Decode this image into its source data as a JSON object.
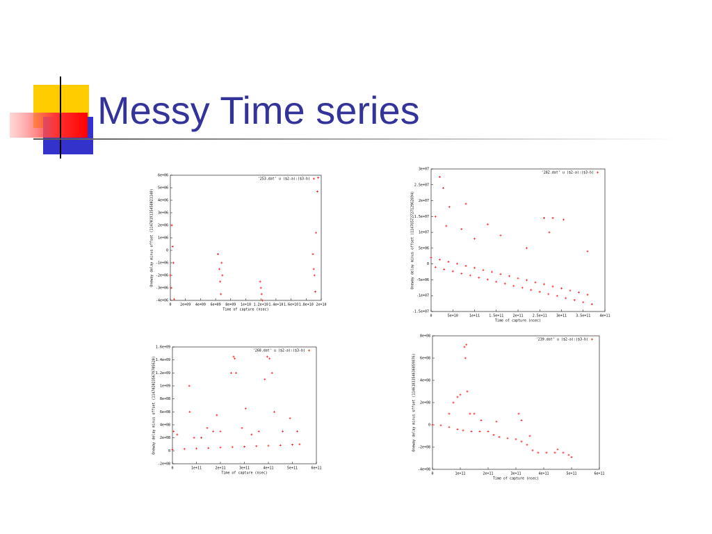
{
  "title": "Messy Time series",
  "chart_data": [
    {
      "type": "scatter",
      "x_label": "Time of capture (nsec)",
      "y_label": "Oneway delay minus offset (1147019135458021140)",
      "xlim": [
        0,
        20000000000
      ],
      "ylim": [
        -4000000,
        6000000
      ],
      "xticks": [
        0,
        {
          "value": 2000000000,
          "label": "2e+09"
        },
        {
          "value": 4000000000,
          "label": "4e+09"
        },
        {
          "value": 6000000000,
          "label": "6e+09"
        },
        {
          "value": 8000000000,
          "label": "8e+09"
        },
        {
          "value": 10000000000,
          "label": "1e+10"
        },
        {
          "value": 12000000000,
          "label": "1.2e+10"
        },
        {
          "value": 14000000000,
          "label": "1.4e+10"
        },
        {
          "value": 16000000000,
          "label": "1.6e+10"
        },
        {
          "value": 18000000000,
          "label": "1.8e+10"
        },
        {
          "value": 20000000000,
          "label": "2e+10"
        }
      ],
      "yticks": [
        {
          "value": -4000000,
          "label": "-4e+06"
        },
        {
          "value": -3000000,
          "label": "-3e+06"
        },
        {
          "value": -2000000,
          "label": "-2e+06"
        },
        {
          "value": -1000000,
          "label": "-1e+06"
        },
        0,
        {
          "value": 1000000,
          "label": "1e+06"
        },
        {
          "value": 2000000,
          "label": "2e+06"
        },
        {
          "value": 3000000,
          "label": "3e+06"
        },
        {
          "value": 4000000,
          "label": "4e+06"
        },
        {
          "value": 5000000,
          "label": "5e+06"
        },
        {
          "value": 6000000,
          "label": "6e+06"
        }
      ],
      "series": [
        {
          "name": "'253.dat' u ($2-a):($3-b)",
          "color": "#ff0000",
          "x": [
            0,
            100000000,
            200000000,
            300000000,
            400000000,
            500000000,
            6300000000,
            6500000000,
            6600000000,
            6700000000,
            6800000000,
            6900000000,
            11900000000,
            12000000000,
            12100000000,
            12200000000,
            18900000000,
            19000000000,
            19100000000,
            19200000000,
            19300000000,
            19500000000,
            19600000000
          ],
          "values": [
            -2000000,
            -3000000,
            2000000,
            300000,
            -1000000,
            -3900000,
            -300000,
            -1500000,
            -2500000,
            -3500000,
            -1000000,
            -2000000,
            -2500000,
            -3000000,
            -3500000,
            -4000000,
            -300000,
            -1500000,
            -2000000,
            -3300000,
            1400000,
            4700000,
            5800000
          ]
        }
      ]
    },
    {
      "type": "scatter",
      "x_label": "Time of capture (nsec)",
      "y_label": "Oneway delay minus offset (1147657272712962694)",
      "xlim": [
        0,
        400000000000
      ],
      "ylim": [
        -15000000,
        30000000
      ],
      "xticks": [
        0,
        {
          "value": 50000000000,
          "label": "5e+10"
        },
        {
          "value": 100000000000,
          "label": "1e+11"
        },
        {
          "value": 150000000000,
          "label": "1.5e+11"
        },
        {
          "value": 200000000000,
          "label": "2e+11"
        },
        {
          "value": 250000000000,
          "label": "2.5e+11"
        },
        {
          "value": 300000000000,
          "label": "3e+11"
        },
        {
          "value": 350000000000,
          "label": "3.5e+11"
        },
        {
          "value": 400000000000,
          "label": "4e+11"
        }
      ],
      "yticks": [
        {
          "value": -15000000,
          "label": "-1.5e+07"
        },
        {
          "value": -10000000,
          "label": "-1e+07"
        },
        {
          "value": -5000000,
          "label": "-5e+06"
        },
        0,
        {
          "value": 5000000,
          "label": "5e+06"
        },
        {
          "value": 10000000,
          "label": "1e+07"
        },
        {
          "value": 15000000,
          "label": "1.5e+07"
        },
        {
          "value": 20000000,
          "label": "2e+07"
        },
        {
          "value": 25000000,
          "label": "2.5e+07"
        },
        {
          "value": 30000000,
          "label": "3e+07"
        }
      ],
      "series": [
        {
          "name": "'282.dat' u ($2-a):($3-b)",
          "color": "#ff0000",
          "x": [
            0,
            20000000000,
            40000000000,
            60000000000,
            80000000000,
            100000000000,
            120000000000,
            140000000000,
            160000000000,
            180000000000,
            200000000000,
            220000000000,
            240000000000,
            260000000000,
            280000000000,
            300000000000,
            320000000000,
            340000000000,
            360000000000,
            10000000000,
            30000000000,
            50000000000,
            70000000000,
            90000000000,
            110000000000,
            130000000000,
            150000000000,
            170000000000,
            190000000000,
            210000000000,
            230000000000,
            250000000000,
            270000000000,
            290000000000,
            310000000000,
            330000000000,
            350000000000,
            370000000000,
            10000000000,
            20000000000,
            28000000000,
            42000000000,
            35000000000,
            70000000000,
            80000000000,
            130000000000,
            160000000000,
            260000000000,
            280000000000,
            305000000000,
            272000000000,
            360000000000,
            220000000000,
            100000000000
          ],
          "values": [
            2000000,
            1400000,
            700000,
            100000,
            -600000,
            -1200000,
            -1900000,
            -2500000,
            -3200000,
            -3800000,
            -4500000,
            -5100000,
            -5800000,
            -6400000,
            -7100000,
            -7700000,
            -8400000,
            -9000000,
            -9700000,
            -1000000,
            -1700000,
            -2300000,
            -3000000,
            -3600000,
            -4300000,
            -4900000,
            -5600000,
            -6200000,
            -6900000,
            -7500000,
            -8200000,
            -8800000,
            -9500000,
            -10100000,
            -10800000,
            -11400000,
            -12100000,
            -12700000,
            15000000,
            27500000,
            24000000,
            18000000,
            12000000,
            11000000,
            19000000,
            12500000,
            9000000,
            14500000,
            14500000,
            14000000,
            10000000,
            4000000,
            5000000,
            8000000
          ]
        }
      ]
    },
    {
      "type": "scatter",
      "x_label": "Time of capture (nsec)",
      "y_label": "Oneway delay minus offset (1147020235679705620)",
      "xlim": [
        0,
        600000000000
      ],
      "ylim": [
        -200000000,
        1600000000
      ],
      "xticks": [
        0,
        {
          "value": 100000000000,
          "label": "1e+11"
        },
        {
          "value": 200000000000,
          "label": "2e+11"
        },
        {
          "value": 300000000000,
          "label": "3e+11"
        },
        {
          "value": 400000000000,
          "label": "4e+11"
        },
        {
          "value": 500000000000,
          "label": "5e+11"
        },
        {
          "value": 600000000000,
          "label": "6e+11"
        }
      ],
      "yticks": [
        {
          "value": -200000000,
          "label": "-2e+08"
        },
        0,
        {
          "value": 200000000,
          "label": "2e+08"
        },
        {
          "value": 400000000,
          "label": "4e+08"
        },
        {
          "value": 600000000,
          "label": "6e+08"
        },
        {
          "value": 800000000,
          "label": "8e+08"
        },
        {
          "value": 1000000000,
          "label": "1e+09"
        },
        {
          "value": 1200000000,
          "label": "1.2e+09"
        },
        {
          "value": 1400000000,
          "label": "1.4e+09"
        },
        {
          "value": 1600000000,
          "label": "1.6e+09"
        }
      ],
      "series": [
        {
          "name": "'268.dat' u ($2-a):($3-b)",
          "color": "#ff0000",
          "x": [
            0,
            50000000000,
            100000000000,
            150000000000,
            200000000000,
            250000000000,
            300000000000,
            350000000000,
            400000000000,
            450000000000,
            500000000000,
            530000000000,
            5000000000,
            20000000000,
            70000000000,
            72000000000,
            90000000000,
            120000000000,
            145000000000,
            170000000000,
            185000000000,
            200000000000,
            245000000000,
            255000000000,
            260000000000,
            265000000000,
            290000000000,
            305000000000,
            330000000000,
            360000000000,
            385000000000,
            395000000000,
            405000000000,
            415000000000,
            425000000000,
            460000000000,
            490000000000,
            520000000000
          ],
          "values": [
            20000000,
            28000000,
            35000000,
            42000000,
            50000000,
            57000000,
            64000000,
            71000000,
            78000000,
            85000000,
            93000000,
            100000000,
            300000000,
            250000000,
            1000000000,
            600000000,
            200000000,
            200000000,
            350000000,
            300000000,
            550000000,
            300000000,
            1200000000,
            1450000000,
            1420000000,
            1200000000,
            350000000,
            650000000,
            250000000,
            300000000,
            1100000000,
            1450000000,
            1420000000,
            1200000000,
            600000000,
            300000000,
            500000000,
            300000000
          ]
        }
      ]
    },
    {
      "type": "scatter",
      "x_label": "Time of capture (nsec)",
      "y_label": "Oneway delay minus offset (1146183354636859876)",
      "xlim": [
        0,
        600000000000
      ],
      "ylim": [
        -400000000,
        800000000
      ],
      "xticks": [
        0,
        {
          "value": 100000000000,
          "label": "1e+11"
        },
        {
          "value": 200000000000,
          "label": "2e+11"
        },
        {
          "value": 300000000000,
          "label": "3e+11"
        },
        {
          "value": 400000000000,
          "label": "4e+11"
        },
        {
          "value": 500000000000,
          "label": "5e+11"
        },
        {
          "value": 600000000000,
          "label": "6e+11"
        }
      ],
      "yticks": [
        {
          "value": -400000000,
          "label": "-4e+08"
        },
        {
          "value": -200000000,
          "label": "-2e+08"
        },
        0,
        {
          "value": 200000000,
          "label": "2e+08"
        },
        {
          "value": 400000000,
          "label": "4e+08"
        },
        {
          "value": 600000000,
          "label": "6e+08"
        },
        {
          "value": 800000000,
          "label": "8e+08"
        }
      ],
      "series": [
        {
          "name": "'239.dat' u ($2-a):($3-b)",
          "color": "#ff0000",
          "x": [
            0,
            30000000000,
            60000000000,
            90000000000,
            110000000000,
            140000000000,
            170000000000,
            200000000000,
            220000000000,
            240000000000,
            270000000000,
            300000000000,
            320000000000,
            340000000000,
            360000000000,
            380000000000,
            410000000000,
            440000000000,
            470000000000,
            490000000000,
            500000000000,
            60000000000,
            75000000000,
            90000000000,
            100000000000,
            115000000000,
            118000000000,
            122000000000,
            125000000000,
            135000000000,
            150000000000,
            175000000000,
            230000000000,
            310000000000,
            320000000000,
            350000000000,
            450000000000
          ],
          "values": [
            0,
            -5000000,
            -20000000,
            -40000000,
            -50000000,
            -60000000,
            -60000000,
            -60000000,
            -90000000,
            -110000000,
            -120000000,
            -130000000,
            -150000000,
            -180000000,
            -230000000,
            -250000000,
            -250000000,
            -250000000,
            -250000000,
            -270000000,
            -290000000,
            100000000,
            200000000,
            250000000,
            270000000,
            700000000,
            600000000,
            720000000,
            300000000,
            100000000,
            100000000,
            40000000,
            30000000,
            100000000,
            40000000,
            -100000000,
            -220000000
          ]
        }
      ]
    }
  ]
}
